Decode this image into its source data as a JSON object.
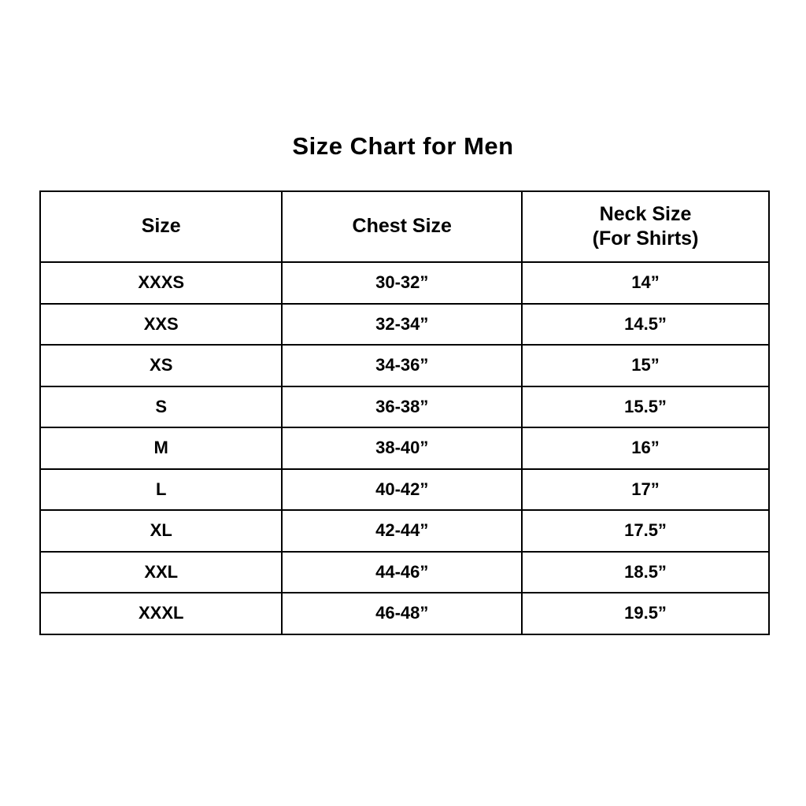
{
  "title": "Size Chart for Men",
  "table": {
    "headers": {
      "size": "Size",
      "chest": "Chest Size",
      "neck": "Neck Size",
      "neck_sub": "(For Shirts)"
    },
    "rows": [
      [
        "XXXS",
        "30-32”",
        "14”"
      ],
      [
        "XXS",
        "32-34”",
        "14.5”"
      ],
      [
        "XS",
        "34-36”",
        "15”"
      ],
      [
        "S",
        "36-38”",
        "15.5”"
      ],
      [
        "M",
        "38-40”",
        "16”"
      ],
      [
        "L",
        "40-42”",
        "17”"
      ],
      [
        "XL",
        "42-44”",
        "17.5”"
      ],
      [
        "XXL",
        "44-46”",
        "18.5”"
      ],
      [
        "XXXL",
        "46-48”",
        "19.5”"
      ]
    ]
  },
  "chart_data": {
    "type": "table",
    "title": "Size Chart for Men",
    "columns": [
      "Size",
      "Chest Size",
      "Neck Size (For Shirts)"
    ],
    "rows": [
      {
        "size": "XXXS",
        "chest_size": "30-32”",
        "neck_size": "14”"
      },
      {
        "size": "XXS",
        "chest_size": "32-34”",
        "neck_size": "14.5”"
      },
      {
        "size": "XS",
        "chest_size": "34-36”",
        "neck_size": "15”"
      },
      {
        "size": "S",
        "chest_size": "36-38”",
        "neck_size": "15.5”"
      },
      {
        "size": "M",
        "chest_size": "38-40”",
        "neck_size": "16”"
      },
      {
        "size": "L",
        "chest_size": "40-42”",
        "neck_size": "17”"
      },
      {
        "size": "XL",
        "chest_size": "42-44”",
        "neck_size": "17.5”"
      },
      {
        "size": "XXL",
        "chest_size": "44-46”",
        "neck_size": "18.5”"
      },
      {
        "size": "XXXL",
        "chest_size": "46-48”",
        "neck_size": "19.5”"
      }
    ],
    "colors": {
      "background": "#ffffff",
      "border": "#000000",
      "text": "#000000"
    }
  }
}
